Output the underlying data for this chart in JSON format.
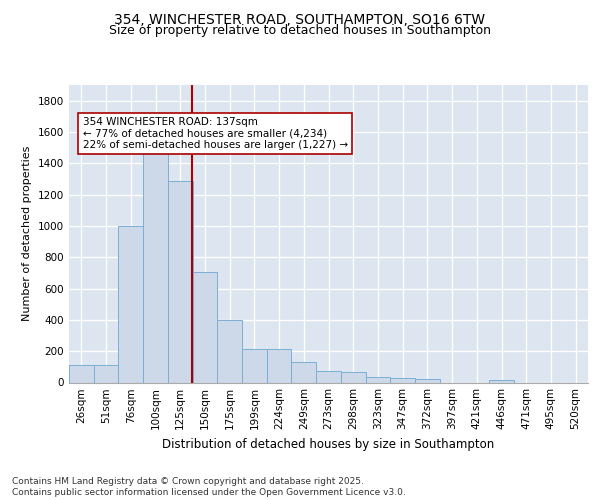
{
  "title1": "354, WINCHESTER ROAD, SOUTHAMPTON, SO16 6TW",
  "title2": "Size of property relative to detached houses in Southampton",
  "xlabel": "Distribution of detached houses by size in Southampton",
  "ylabel": "Number of detached properties",
  "bar_labels": [
    "26sqm",
    "51sqm",
    "76sqm",
    "100sqm",
    "125sqm",
    "150sqm",
    "175sqm",
    "199sqm",
    "224sqm",
    "249sqm",
    "273sqm",
    "298sqm",
    "323sqm",
    "347sqm",
    "372sqm",
    "397sqm",
    "421sqm",
    "446sqm",
    "471sqm",
    "495sqm",
    "520sqm"
  ],
  "bar_values": [
    110,
    110,
    1000,
    1490,
    1290,
    705,
    400,
    215,
    215,
    130,
    75,
    65,
    35,
    30,
    20,
    0,
    0,
    15,
    0,
    0,
    0
  ],
  "bar_color": "#cdd9e8",
  "bar_edgecolor": "#7aafd4",
  "vline_color": "#aa0000",
  "annotation_text": "354 WINCHESTER ROAD: 137sqm\n← 77% of detached houses are smaller (4,234)\n22% of semi-detached houses are larger (1,227) →",
  "annotation_box_facecolor": "#ffffff",
  "annotation_box_edgecolor": "#aa0000",
  "background_color": "#dde6f0",
  "footer_text": "Contains HM Land Registry data © Crown copyright and database right 2025.\nContains public sector information licensed under the Open Government Licence v3.0.",
  "ylim": [
    0,
    1900
  ],
  "yticks": [
    0,
    200,
    400,
    600,
    800,
    1000,
    1200,
    1400,
    1600,
    1800
  ],
  "title1_fontsize": 10,
  "title2_fontsize": 9,
  "tick_fontsize": 7.5,
  "ylabel_fontsize": 8,
  "xlabel_fontsize": 8.5,
  "footer_fontsize": 6.5,
  "annotation_fontsize": 7.5
}
